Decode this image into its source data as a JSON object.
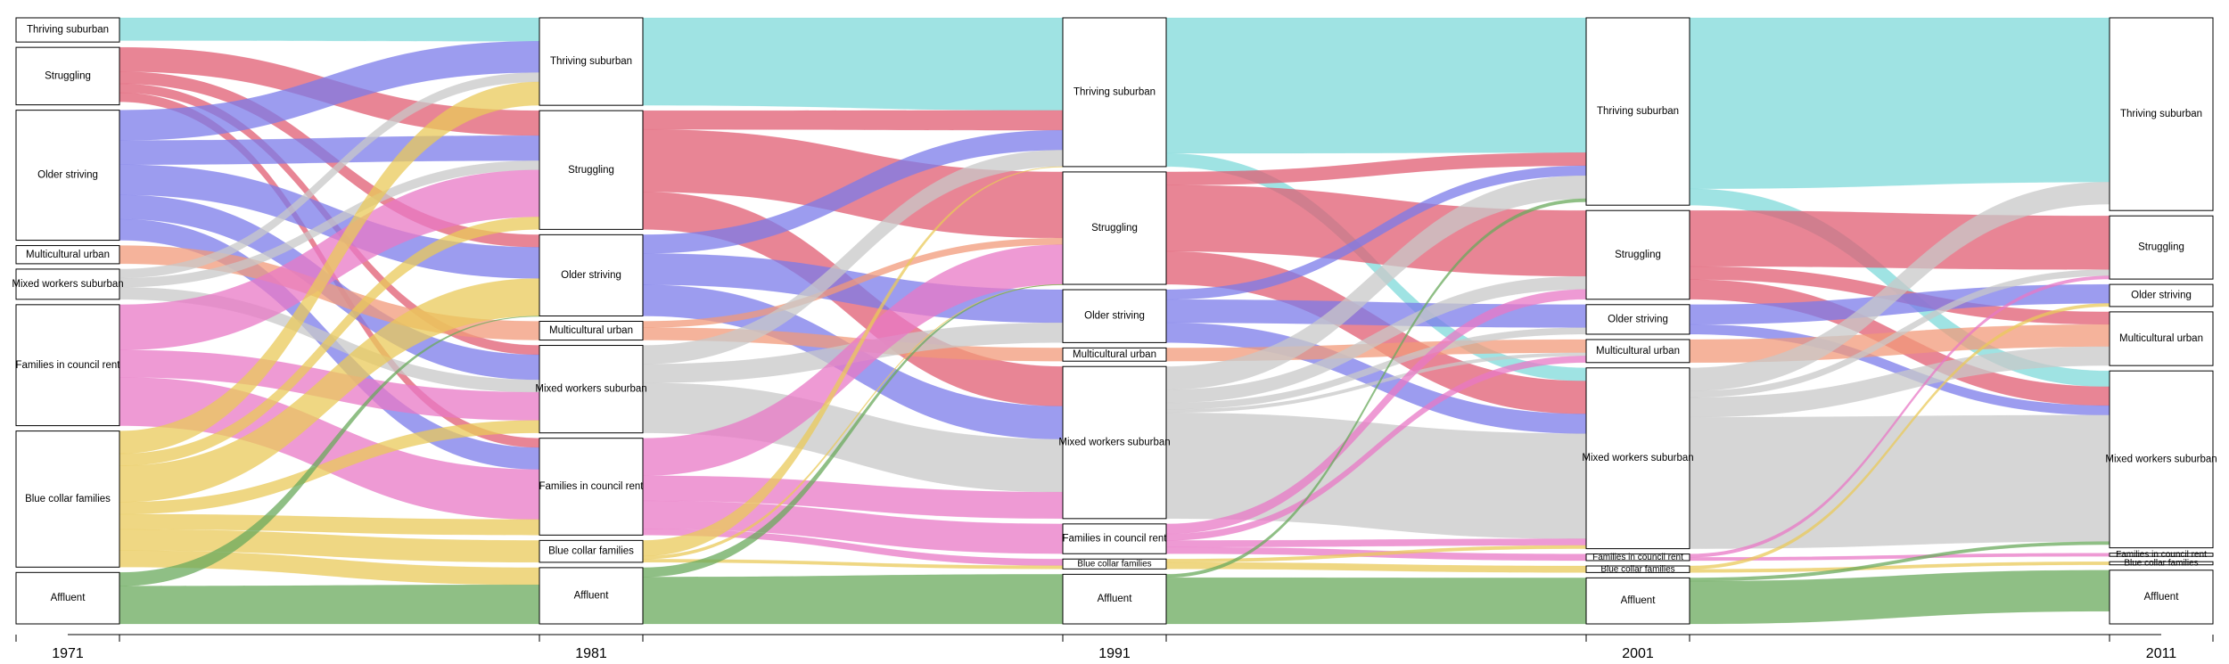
{
  "chart_data": {
    "type": "alluvial",
    "title": "",
    "xlabel": "",
    "ylabel": "",
    "grid": false,
    "years": [
      "1971",
      "1981",
      "1991",
      "2001",
      "2011"
    ],
    "categories": [
      "Thriving suburban",
      "Struggling",
      "Older striving",
      "Multicultural urban",
      "Mixed workers suburban",
      "Families in council rent",
      "Blue collar families",
      "Affluent"
    ],
    "category_colors": {
      "Thriving suburban": "#7fdada",
      "Struggling": "#e05c72",
      "Older striving": "#7b7bea",
      "Multicultural urban": "#f19a79",
      "Mixed workers suburban": "#c8c8c8",
      "Families in council rent": "#e878c6",
      "Blue collar families": "#e9c95a",
      "Affluent": "#6aaa5c"
    },
    "stratum_sizes": [
      [
        8,
        19,
        43,
        6,
        10,
        40,
        45,
        17
      ],
      [
        28,
        38,
        26,
        6,
        28,
        31,
        7,
        18
      ],
      [
        45,
        34,
        16,
        4,
        46,
        9,
        3,
        15
      ],
      [
        57,
        27,
        9,
        7,
        55,
        2,
        2,
        14
      ],
      [
        61,
        20,
        7,
        17,
        56,
        1,
        1,
        17
      ]
    ],
    "flows": [
      {
        "from_year": "1971",
        "to_year": "1981",
        "from": "Thriving suburban",
        "to": "Thriving suburban",
        "value": 7.5
      },
      {
        "from_year": "1971",
        "to_year": "1981",
        "from": "Struggling",
        "to": "Struggling",
        "value": 8
      },
      {
        "from_year": "1971",
        "to_year": "1981",
        "from": "Struggling",
        "to": "Older striving",
        "value": 4
      },
      {
        "from_year": "1971",
        "to_year": "1981",
        "from": "Struggling",
        "to": "Mixed workers suburban",
        "value": 3
      },
      {
        "from_year": "1971",
        "to_year": "1981",
        "from": "Struggling",
        "to": "Families in council rent",
        "value": 3
      },
      {
        "from_year": "1971",
        "to_year": "1981",
        "from": "Older striving",
        "to": "Thriving suburban",
        "value": 10
      },
      {
        "from_year": "1971",
        "to_year": "1981",
        "from": "Older striving",
        "to": "Struggling",
        "value": 8
      },
      {
        "from_year": "1971",
        "to_year": "1981",
        "from": "Older striving",
        "to": "Older striving",
        "value": 10
      },
      {
        "from_year": "1971",
        "to_year": "1981",
        "from": "Older striving",
        "to": "Mixed workers suburban",
        "value": 8
      },
      {
        "from_year": "1971",
        "to_year": "1981",
        "from": "Older striving",
        "to": "Families in council rent",
        "value": 7
      },
      {
        "from_year": "1971",
        "to_year": "1981",
        "from": "Multicultural urban",
        "to": "Multicultural urban",
        "value": 6
      },
      {
        "from_year": "1971",
        "to_year": "1981",
        "from": "Mixed workers suburban",
        "to": "Struggling",
        "value": 3
      },
      {
        "from_year": "1971",
        "to_year": "1981",
        "from": "Mixed workers suburban",
        "to": "Mixed workers suburban",
        "value": 4
      },
      {
        "from_year": "1971",
        "to_year": "1981",
        "from": "Mixed workers suburban",
        "to": "Thriving suburban",
        "value": 3
      },
      {
        "from_year": "1971",
        "to_year": "1981",
        "from": "Families in council rent",
        "to": "Struggling",
        "value": 15
      },
      {
        "from_year": "1971",
        "to_year": "1981",
        "from": "Families in council rent",
        "to": "Families in council rent",
        "value": 16
      },
      {
        "from_year": "1971",
        "to_year": "1981",
        "from": "Families in council rent",
        "to": "Mixed workers suburban",
        "value": 9
      },
      {
        "from_year": "1971",
        "to_year": "1981",
        "from": "Blue collar families",
        "to": "Thriving suburban",
        "value": 7.5
      },
      {
        "from_year": "1971",
        "to_year": "1981",
        "from": "Blue collar families",
        "to": "Older striving",
        "value": 12
      },
      {
        "from_year": "1971",
        "to_year": "1981",
        "from": "Blue collar families",
        "to": "Mixed workers suburban",
        "value": 4
      },
      {
        "from_year": "1971",
        "to_year": "1981",
        "from": "Blue collar families",
        "to": "Families in council rent",
        "value": 5
      },
      {
        "from_year": "1971",
        "to_year": "1981",
        "from": "Blue collar families",
        "to": "Struggling",
        "value": 4
      },
      {
        "from_year": "1971",
        "to_year": "1981",
        "from": "Blue collar families",
        "to": "Blue collar families",
        "value": 7
      },
      {
        "from_year": "1971",
        "to_year": "1981",
        "from": "Blue collar families",
        "to": "Affluent",
        "value": 5.5
      },
      {
        "from_year": "1971",
        "to_year": "1981",
        "from": "Affluent",
        "to": "Affluent",
        "value": 12.5
      },
      {
        "from_year": "1971",
        "to_year": "1981",
        "from": "Affluent",
        "to": "Older striving",
        "value": 4.5
      },
      {
        "from_year": "1981",
        "to_year": "1991",
        "from": "Thriving suburban",
        "to": "Thriving suburban",
        "value": 28
      },
      {
        "from_year": "1981",
        "to_year": "1991",
        "from": "Struggling",
        "to": "Struggling",
        "value": 20
      },
      {
        "from_year": "1981",
        "to_year": "1991",
        "from": "Struggling",
        "to": "Mixed workers suburban",
        "value": 12
      },
      {
        "from_year": "1981",
        "to_year": "1991",
        "from": "Struggling",
        "to": "Thriving suburban",
        "value": 6
      },
      {
        "from_year": "1981",
        "to_year": "1991",
        "from": "Older striving",
        "to": "Older striving",
        "value": 10
      },
      {
        "from_year": "1981",
        "to_year": "1991",
        "from": "Older striving",
        "to": "Thriving suburban",
        "value": 6
      },
      {
        "from_year": "1981",
        "to_year": "1991",
        "from": "Older striving",
        "to": "Mixed workers suburban",
        "value": 10
      },
      {
        "from_year": "1981",
        "to_year": "1991",
        "from": "Multicultural urban",
        "to": "Multicultural urban",
        "value": 4
      },
      {
        "from_year": "1981",
        "to_year": "1991",
        "from": "Multicultural urban",
        "to": "Struggling",
        "value": 2
      },
      {
        "from_year": "1981",
        "to_year": "1991",
        "from": "Mixed workers suburban",
        "to": "Mixed workers suburban",
        "value": 16
      },
      {
        "from_year": "1981",
        "to_year": "1991",
        "from": "Mixed workers suburban",
        "to": "Older striving",
        "value": 6
      },
      {
        "from_year": "1981",
        "to_year": "1991",
        "from": "Mixed workers suburban",
        "to": "Thriving suburban",
        "value": 6
      },
      {
        "from_year": "1981",
        "to_year": "1991",
        "from": "Families in council rent",
        "to": "Struggling",
        "value": 12
      },
      {
        "from_year": "1981",
        "to_year": "1991",
        "from": "Families in council rent",
        "to": "Families in council rent",
        "value": 9
      },
      {
        "from_year": "1981",
        "to_year": "1991",
        "from": "Families in council rent",
        "to": "Mixed workers suburban",
        "value": 8
      },
      {
        "from_year": "1981",
        "to_year": "1991",
        "from": "Families in council rent",
        "to": "Blue collar families",
        "value": 2
      },
      {
        "from_year": "1981",
        "to_year": "1991",
        "from": "Blue collar families",
        "to": "Thriving suburban",
        "value": 5
      },
      {
        "from_year": "1981",
        "to_year": "1991",
        "from": "Blue collar families",
        "to": "Blue collar families",
        "value": 1
      },
      {
        "from_year": "1981",
        "to_year": "1991",
        "from": "Blue collar families",
        "to": "Struggling",
        "value": 1
      },
      {
        "from_year": "1981",
        "to_year": "1991",
        "from": "Affluent",
        "to": "Affluent",
        "value": 15
      },
      {
        "from_year": "1981",
        "to_year": "1991",
        "from": "Affluent",
        "to": "Struggling",
        "value": 3
      },
      {
        "from_year": "1991",
        "to_year": "2001",
        "from": "Thriving suburban",
        "to": "Thriving suburban",
        "value": 41
      },
      {
        "from_year": "1991",
        "to_year": "2001",
        "from": "Thriving suburban",
        "to": "Mixed workers suburban",
        "value": 4
      },
      {
        "from_year": "1991",
        "to_year": "2001",
        "from": "Struggling",
        "to": "Struggling",
        "value": 20
      },
      {
        "from_year": "1991",
        "to_year": "2001",
        "from": "Struggling",
        "to": "Mixed workers suburban",
        "value": 10
      },
      {
        "from_year": "1991",
        "to_year": "2001",
        "from": "Struggling",
        "to": "Thriving suburban",
        "value": 4
      },
      {
        "from_year": "1991",
        "to_year": "2001",
        "from": "Older striving",
        "to": "Older striving",
        "value": 7
      },
      {
        "from_year": "1991",
        "to_year": "2001",
        "from": "Older striving",
        "to": "Mixed workers suburban",
        "value": 6
      },
      {
        "from_year": "1991",
        "to_year": "2001",
        "from": "Older striving",
        "to": "Thriving suburban",
        "value": 3
      },
      {
        "from_year": "1991",
        "to_year": "2001",
        "from": "Multicultural urban",
        "to": "Multicultural urban",
        "value": 4
      },
      {
        "from_year": "1991",
        "to_year": "2001",
        "from": "Mixed workers suburban",
        "to": "Mixed workers suburban",
        "value": 32
      },
      {
        "from_year": "1991",
        "to_year": "2001",
        "from": "Mixed workers suburban",
        "to": "Thriving suburban",
        "value": 7
      },
      {
        "from_year": "1991",
        "to_year": "2001",
        "from": "Mixed workers suburban",
        "to": "Struggling",
        "value": 4
      },
      {
        "from_year": "1991",
        "to_year": "2001",
        "from": "Mixed workers suburban",
        "to": "Older striving",
        "value": 2
      },
      {
        "from_year": "1991",
        "to_year": "2001",
        "from": "Mixed workers suburban",
        "to": "Multicultural urban",
        "value": 1
      },
      {
        "from_year": "1991",
        "to_year": "2001",
        "from": "Families in council rent",
        "to": "Struggling",
        "value": 3
      },
      {
        "from_year": "1991",
        "to_year": "2001",
        "from": "Families in council rent",
        "to": "Mixed workers suburban",
        "value": 2
      },
      {
        "from_year": "1991",
        "to_year": "2001",
        "from": "Families in council rent",
        "to": "Multicultural urban",
        "value": 2
      },
      {
        "from_year": "1991",
        "to_year": "2001",
        "from": "Families in council rent",
        "to": "Families in council rent",
        "value": 2
      },
      {
        "from_year": "1991",
        "to_year": "2001",
        "from": "Blue collar families",
        "to": "Blue collar families",
        "value": 2
      },
      {
        "from_year": "1991",
        "to_year": "2001",
        "from": "Blue collar families",
        "to": "Mixed workers suburban",
        "value": 1
      },
      {
        "from_year": "1991",
        "to_year": "2001",
        "from": "Affluent",
        "to": "Affluent",
        "value": 14
      },
      {
        "from_year": "1991",
        "to_year": "2001",
        "from": "Affluent",
        "to": "Thriving suburban",
        "value": 1
      },
      {
        "from_year": "2001",
        "to_year": "2011",
        "from": "Thriving suburban",
        "to": "Thriving suburban",
        "value": 52
      },
      {
        "from_year": "2001",
        "to_year": "2011",
        "from": "Thriving suburban",
        "to": "Mixed workers suburban",
        "value": 5
      },
      {
        "from_year": "2001",
        "to_year": "2011",
        "from": "Struggling",
        "to": "Struggling",
        "value": 17
      },
      {
        "from_year": "2001",
        "to_year": "2011",
        "from": "Struggling",
        "to": "Mixed workers suburban",
        "value": 6
      },
      {
        "from_year": "2001",
        "to_year": "2011",
        "from": "Struggling",
        "to": "Multicultural urban",
        "value": 4
      },
      {
        "from_year": "2001",
        "to_year": "2011",
        "from": "Older striving",
        "to": "Older striving",
        "value": 6
      },
      {
        "from_year": "2001",
        "to_year": "2011",
        "from": "Older striving",
        "to": "Mixed workers suburban",
        "value": 3
      },
      {
        "from_year": "2001",
        "to_year": "2011",
        "from": "Multicultural urban",
        "to": "Multicultural urban",
        "value": 7
      },
      {
        "from_year": "2001",
        "to_year": "2011",
        "from": "Mixed workers suburban",
        "to": "Mixed workers suburban",
        "value": 40
      },
      {
        "from_year": "2001",
        "to_year": "2011",
        "from": "Mixed workers suburban",
        "to": "Thriving suburban",
        "value": 7
      },
      {
        "from_year": "2001",
        "to_year": "2011",
        "from": "Mixed workers suburban",
        "to": "Multicultural urban",
        "value": 6
      },
      {
        "from_year": "2001",
        "to_year": "2011",
        "from": "Mixed workers suburban",
        "to": "Struggling",
        "value": 2
      },
      {
        "from_year": "2001",
        "to_year": "2011",
        "from": "Families in council rent",
        "to": "Families in council rent",
        "value": 1
      },
      {
        "from_year": "2001",
        "to_year": "2011",
        "from": "Families in council rent",
        "to": "Struggling",
        "value": 1
      },
      {
        "from_year": "2001",
        "to_year": "2011",
        "from": "Blue collar families",
        "to": "Blue collar families",
        "value": 1
      },
      {
        "from_year": "2001",
        "to_year": "2011",
        "from": "Blue collar families",
        "to": "Older striving",
        "value": 1
      },
      {
        "from_year": "2001",
        "to_year": "2011",
        "from": "Affluent",
        "to": "Affluent",
        "value": 13
      },
      {
        "from_year": "2001",
        "to_year": "2011",
        "from": "Affluent",
        "to": "Mixed workers suburban",
        "value": 1
      }
    ]
  }
}
